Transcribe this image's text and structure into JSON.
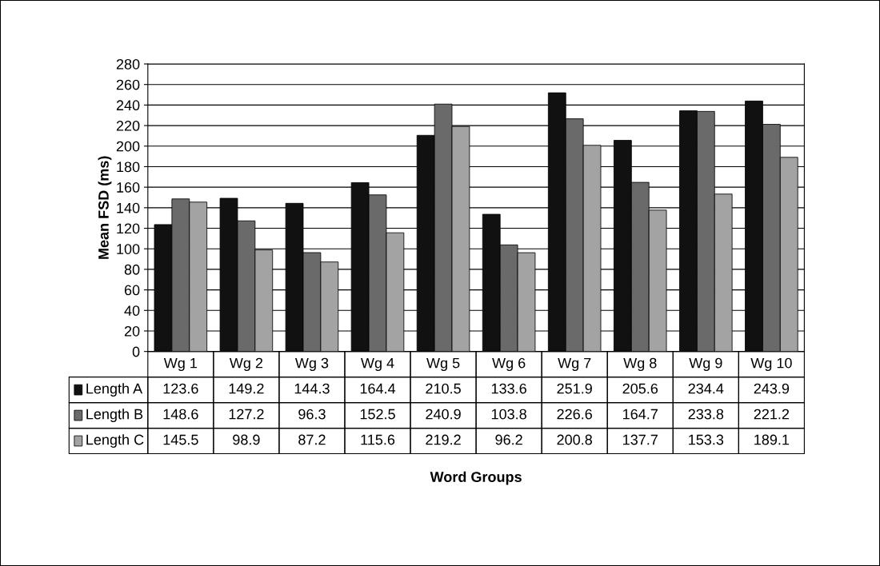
{
  "chart_data": {
    "type": "bar",
    "annotations": [
      "Word Groups"
    ],
    "ylabel": "Mean FSD (ms)",
    "categories": [
      "Wg 1",
      "Wg 2",
      "Wg 3",
      "Wg 4",
      "Wg 5",
      "Wg 6",
      "Wg 7",
      "Wg 8",
      "Wg 9",
      "Wg 10"
    ],
    "series": [
      {
        "name": "Length A",
        "color": "#111111",
        "values": [
          123.6,
          149.2,
          144.3,
          164.4,
          210.5,
          133.6,
          251.9,
          205.6,
          234.4,
          243.9
        ]
      },
      {
        "name": "Length B",
        "color": "#6a6a6a",
        "values": [
          148.6,
          127.2,
          96.3,
          152.5,
          240.9,
          103.8,
          226.6,
          164.7,
          233.8,
          221.2
        ]
      },
      {
        "name": "Length C",
        "color": "#a3a3a3",
        "values": [
          145.5,
          98.9,
          87.2,
          115.6,
          219.2,
          96.2,
          200.8,
          137.7,
          153.3,
          189.1
        ]
      }
    ],
    "ylim": [
      0,
      280
    ],
    "yticks": [
      0,
      20,
      40,
      60,
      80,
      100,
      120,
      140,
      160,
      180,
      200,
      220,
      240,
      260,
      280
    ],
    "grid": "y",
    "data_labels": true,
    "legend": "bottom left"
  }
}
